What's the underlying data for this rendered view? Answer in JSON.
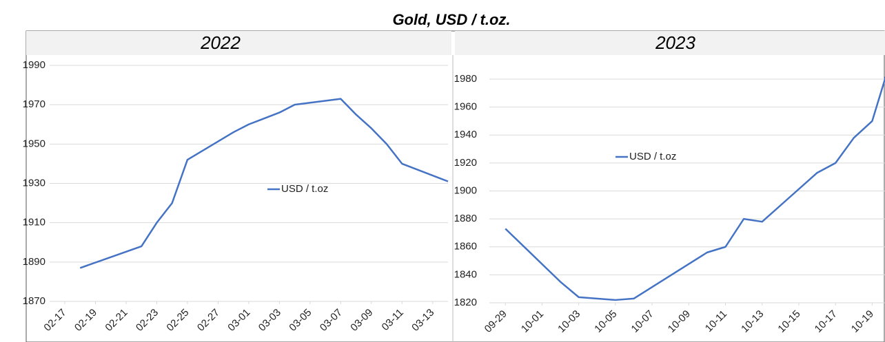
{
  "title": "Gold, USD / t.oz.",
  "chart_data": [
    {
      "type": "line",
      "title": "2022",
      "x": [
        "02-18",
        "02-22",
        "02-23",
        "02-24",
        "02-25",
        "02-28",
        "03-01",
        "03-02",
        "03-03",
        "03-04",
        "03-07",
        "03-08",
        "03-09",
        "03-10",
        "03-11",
        "03-14"
      ],
      "series": [
        {
          "name": "USD / t.oz",
          "color": "#4472c4",
          "values": [
            1887,
            1898,
            1910,
            1920,
            1942,
            1956,
            1960,
            1963,
            1966,
            1970,
            1973,
            1965,
            1958,
            1950,
            1940,
            1931
          ]
        }
      ],
      "xlim": [
        "02-17",
        "03-14"
      ],
      "xticks": [
        "02-17",
        "02-19",
        "02-21",
        "02-23",
        "02-25",
        "02-27",
        "03-01",
        "03-03",
        "03-05",
        "03-07",
        "03-09",
        "03-11",
        "03-13"
      ],
      "ylim": [
        1870,
        1990
      ],
      "yticks": [
        1870,
        1890,
        1910,
        1930,
        1950,
        1970,
        1990
      ],
      "grid": true,
      "legend": "center"
    },
    {
      "type": "line",
      "title": "2023",
      "x": [
        "09-29",
        "10-02",
        "10-03",
        "10-05",
        "10-06",
        "10-10",
        "10-11",
        "10-12",
        "10-13",
        "10-16",
        "10-17",
        "10-18",
        "10-19",
        "10-20"
      ],
      "series": [
        {
          "name": "USD / t.oz",
          "color": "#4472c4",
          "values": [
            1873,
            1835,
            1824,
            1822,
            1823,
            1856,
            1860,
            1880,
            1878,
            1913,
            1920,
            1938,
            1950,
            1993
          ]
        }
      ],
      "xlim": [
        "09-27",
        "10-20"
      ],
      "xticks": [
        "09-29",
        "10-01",
        "10-03",
        "10-05",
        "10-07",
        "10-09",
        "10-11",
        "10-13",
        "10-15",
        "10-17",
        "10-19"
      ],
      "ylim": [
        1820,
        1980
      ],
      "yticks": [
        1820,
        1840,
        1860,
        1880,
        1900,
        1920,
        1940,
        1960,
        1980
      ],
      "grid": true,
      "legend": "upper left"
    }
  ]
}
